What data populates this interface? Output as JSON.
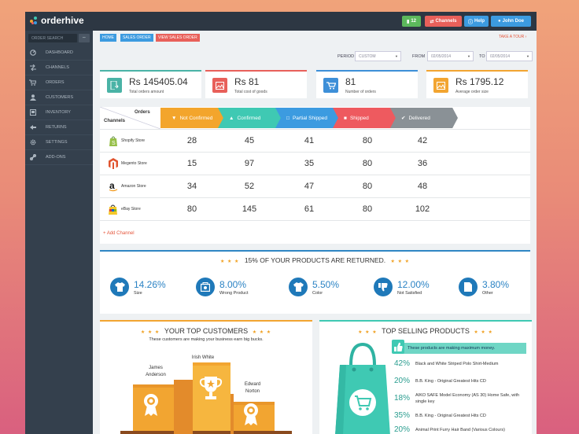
{
  "app": {
    "name": "orderhive"
  },
  "topbar": {
    "badge": "12",
    "channels": "Channels",
    "help": "Help",
    "user": "John Doe"
  },
  "sidebar": {
    "search_placeholder": "ORDER SEARCH",
    "collapse": "⇔",
    "items": [
      {
        "label": "DASHBOARD",
        "icon": "dashboard-icon"
      },
      {
        "label": "CHANNELS",
        "icon": "channels-icon"
      },
      {
        "label": "ORDERS",
        "icon": "cart-icon"
      },
      {
        "label": "CUSTOMERS",
        "icon": "user-icon"
      },
      {
        "label": "INVENTORY",
        "icon": "inventory-icon"
      },
      {
        "label": "RETURNS",
        "icon": "returns-icon"
      },
      {
        "label": "SETTINGS",
        "icon": "gear-icon"
      },
      {
        "label": "ADD-ONS",
        "icon": "link-icon"
      }
    ]
  },
  "breadcrumb": [
    "HOME",
    "SALES ORDER",
    "VIEW SALES ORDER"
  ],
  "take_tour": "TAKE A TOUR ›",
  "filters": {
    "period_label": "PERIOD",
    "period_value": "CUSTOM",
    "from_label": "FROM",
    "from_value": "02/05/2014",
    "to_label": "TO",
    "to_value": "02/05/2014"
  },
  "cards": [
    {
      "value": "Rs 145405.04",
      "label": "Total orders amount",
      "color": "#4ab3a6"
    },
    {
      "value": "Rs 81",
      "label": "Total cost of goods",
      "color": "#e8605a"
    },
    {
      "value": "81",
      "label": "Number of orders",
      "color": "#3d8fd8"
    },
    {
      "value": "Rs 1795.12",
      "label": "Average order size",
      "color": "#f2a531"
    }
  ],
  "orders_table": {
    "orders_header": "Orders",
    "channels_header": "Channels",
    "statuses": [
      {
        "label": "Not Confirmed",
        "color": "#f3a52c"
      },
      {
        "label": "Confirmed",
        "color": "#3fc9b3"
      },
      {
        "label": "Partial Shipped",
        "color": "#3c9be0"
      },
      {
        "label": "Shipped",
        "color": "#ee5a5f"
      },
      {
        "label": "Delivered",
        "color": "#8a9196"
      }
    ],
    "rows": [
      {
        "store": "Shopify Store",
        "values": [
          "28",
          "45",
          "41",
          "80",
          "42"
        ]
      },
      {
        "store": "Megento Store",
        "values": [
          "15",
          "97",
          "35",
          "80",
          "36"
        ]
      },
      {
        "store": "Amazon Store",
        "values": [
          "34",
          "52",
          "47",
          "80",
          "48"
        ]
      },
      {
        "store": "eBay Store",
        "values": [
          "80",
          "145",
          "61",
          "80",
          "102"
        ]
      }
    ],
    "add_channel": "+ Add Channel"
  },
  "returns": {
    "title": "15% OF YOUR PRODUCTS ARE RETURNED.",
    "stars": "★ ★ ★",
    "stats": [
      {
        "pct": "14.26%",
        "label": "Size"
      },
      {
        "pct": "8.00%",
        "label": "Wrong Product"
      },
      {
        "pct": "5.50%",
        "label": "Color"
      },
      {
        "pct": "12.00%",
        "label": "Not Satisfied"
      },
      {
        "pct": "3.80%",
        "label": "Other"
      }
    ]
  },
  "top_customers": {
    "title": "YOUR TOP CUSTOMERS",
    "subtitle": "These customers are making your business earn big bucks.",
    "first": "Irish White",
    "second": "James\nAnderson",
    "third": "Edward\nNorton"
  },
  "top_products": {
    "title": "TOP SELLING PRODUCTS",
    "banner": "These products are making maximum money.",
    "items": [
      {
        "pct": "42%",
        "name": "Black and White Striped Polo Shirt-Medium"
      },
      {
        "pct": "20%",
        "name": "B.B. King - Original Greatest Hits CD"
      },
      {
        "pct": "18%",
        "name": "AIKO SAFE Model Economy (AS 30) Home Safe, with single key"
      },
      {
        "pct": "35%",
        "name": "B.B. King - Original Greatest Hits CD"
      },
      {
        "pct": "20%",
        "name": "Animal Print Furry Hair Band (Various Colours)"
      }
    ]
  }
}
